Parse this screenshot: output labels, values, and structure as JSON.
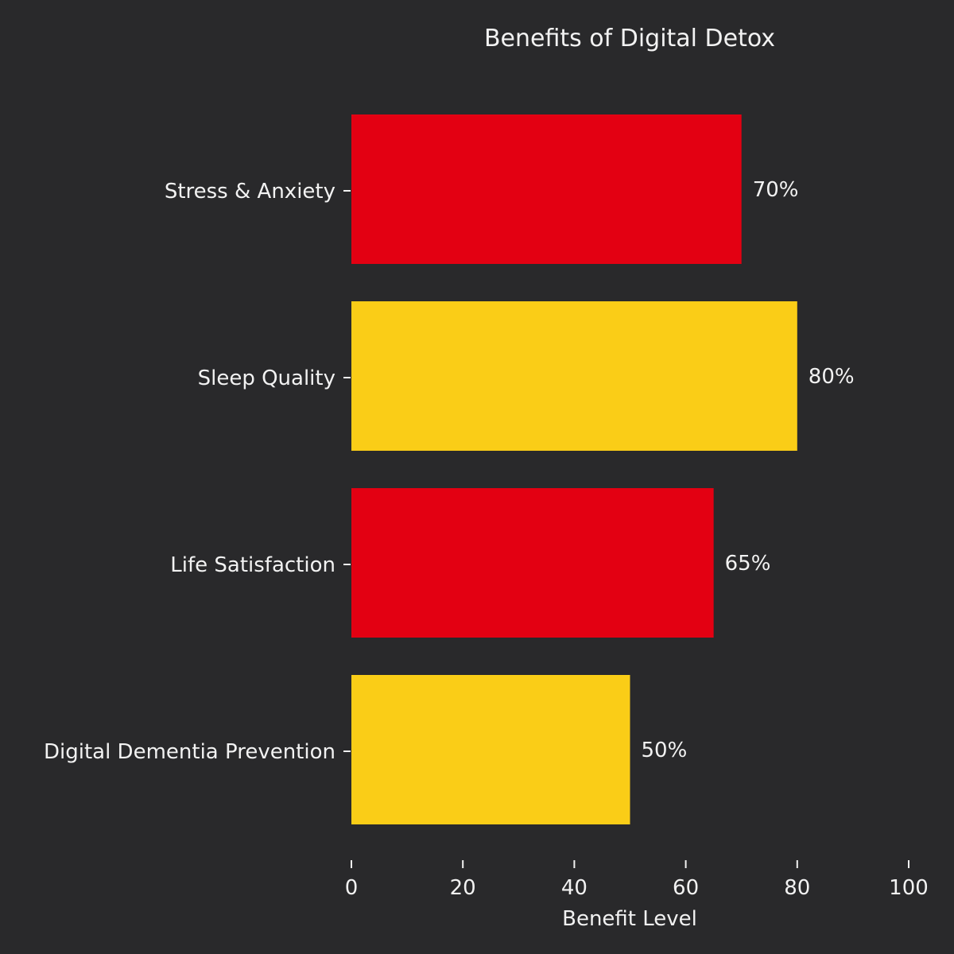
{
  "colors": {
    "background": "#29292b",
    "red": "#e30012",
    "yellow": "#facd17",
    "text": "#f2f2f2"
  },
  "chart_data": {
    "type": "bar",
    "orientation": "horizontal",
    "title": "Benefits of Digital Detox",
    "xlabel": "Benefit Level",
    "ylabel": "",
    "xlim": [
      0,
      100
    ],
    "xticks": [
      0,
      20,
      40,
      60,
      80,
      100
    ],
    "grid": false,
    "legend": "none",
    "categories": [
      "Stress & Anxiety",
      "Sleep Quality",
      "Life Satisfaction",
      "Digital Dementia Prevention"
    ],
    "values": [
      70,
      80,
      65,
      50
    ],
    "value_labels": [
      "70%",
      "80%",
      "65%",
      "50%"
    ],
    "bar_colors": [
      "#e30012",
      "#facd17",
      "#e30012",
      "#facd17"
    ]
  }
}
